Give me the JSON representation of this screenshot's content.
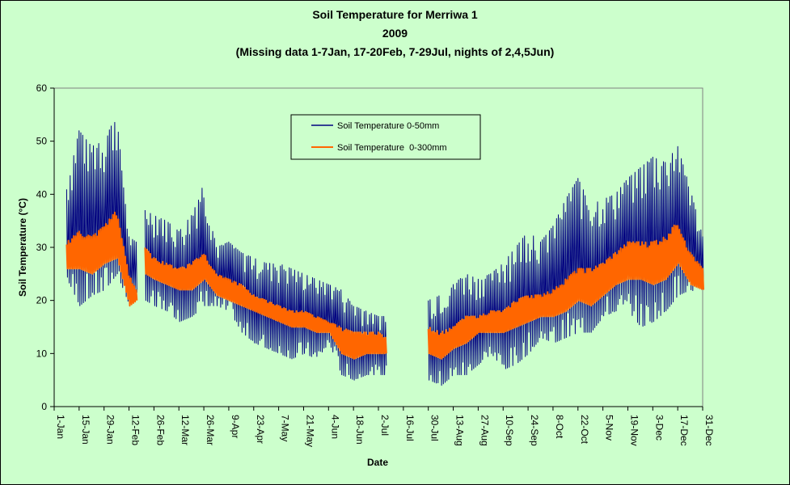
{
  "chart_data": {
    "type": "line",
    "title": "Soil Temperature for Merriwa 1",
    "subtitle": "2009",
    "subtitle2": "(Missing data 1-7Jan, 17-20Feb, 7-29Jul, nights of 2,4,5Jun)",
    "xlabel": "Date",
    "ylabel": "Soil Temperature (°C)",
    "ylim": [
      0,
      60
    ],
    "yticks": [
      0,
      10,
      20,
      30,
      40,
      50,
      60
    ],
    "xlim_day_of_year": [
      1,
      365
    ],
    "x_tick_labels": [
      "1-Jan",
      "15-Jan",
      "29-Jan",
      "12-Feb",
      "26-Feb",
      "12-Mar",
      "26-Mar",
      "9-Apr",
      "23-Apr",
      "7-May",
      "21-May",
      "4-Jun",
      "18-Jun",
      "2-Jul",
      "16-Jul",
      "30-Jul",
      "13-Aug",
      "27-Aug",
      "10-Sep",
      "24-Sep",
      "8-Oct",
      "22-Oct",
      "5-Nov",
      "19-Nov",
      "3-Dec",
      "17-Dec",
      "31-Dec"
    ],
    "grid": false,
    "legend_position": "top-center",
    "missing_periods": [
      "1-7Jan",
      "17-20Feb",
      "7-29Jul",
      "nights of 2,4,5Jun"
    ],
    "series": [
      {
        "name": "Soil Temperature 0-50mm",
        "color": "#000080",
        "daily": {
          "dates": [
            "8-Jan",
            "15-Jan",
            "22-Jan",
            "29-Jan",
            "5-Feb",
            "12-Feb",
            "16-Feb",
            "21-Feb",
            "26-Feb",
            "5-Mar",
            "12-Mar",
            "19-Mar",
            "26-Mar",
            "2-Apr",
            "9-Apr",
            "16-Apr",
            "23-Apr",
            "30-Apr",
            "7-May",
            "14-May",
            "21-May",
            "28-May",
            "4-Jun",
            "11-Jun",
            "18-Jun",
            "25-Jun",
            "2-Jul",
            "6-Jul",
            "30-Jul",
            "6-Aug",
            "13-Aug",
            "20-Aug",
            "27-Aug",
            "3-Sep",
            "10-Sep",
            "17-Sep",
            "24-Sep",
            "1-Oct",
            "8-Oct",
            "15-Oct",
            "22-Oct",
            "29-Oct",
            "5-Nov",
            "12-Nov",
            "19-Nov",
            "26-Nov",
            "3-Dec",
            "10-Dec",
            "17-Dec",
            "24-Dec",
            "31-Dec"
          ],
          "max": [
            41,
            52,
            49,
            50,
            55,
            32,
            31,
            37,
            36,
            35,
            33,
            36,
            42,
            30,
            31,
            29,
            28,
            27,
            27,
            26,
            25,
            24,
            23,
            22,
            19,
            18,
            17,
            17,
            20,
            21,
            23,
            25,
            24,
            25,
            27,
            30,
            33,
            31,
            34,
            39,
            43,
            38,
            39,
            40,
            43,
            45,
            47,
            46,
            49,
            41,
            32
          ],
          "min": [
            24,
            19,
            21,
            22,
            25,
            19,
            21,
            20,
            19,
            18,
            16,
            17,
            19,
            19,
            18,
            14,
            12,
            11,
            10,
            9,
            10,
            9,
            12,
            6,
            5,
            6,
            6,
            6,
            5,
            4,
            6,
            6,
            8,
            10,
            7,
            8,
            10,
            13,
            12,
            13,
            14,
            14,
            17,
            18,
            18,
            15,
            16,
            18,
            21,
            22,
            21
          ]
        }
      },
      {
        "name": "Soil Temperature  0-300mm",
        "color": "#ff6600",
        "daily": {
          "dates": [
            "8-Jan",
            "15-Jan",
            "22-Jan",
            "29-Jan",
            "5-Feb",
            "12-Feb",
            "16-Feb",
            "21-Feb",
            "26-Feb",
            "5-Mar",
            "12-Mar",
            "19-Mar",
            "26-Mar",
            "2-Apr",
            "9-Apr",
            "16-Apr",
            "23-Apr",
            "30-Apr",
            "7-May",
            "14-May",
            "21-May",
            "28-May",
            "4-Jun",
            "11-Jun",
            "18-Jun",
            "25-Jun",
            "2-Jul",
            "6-Jul",
            "30-Jul",
            "6-Aug",
            "13-Aug",
            "20-Aug",
            "27-Aug",
            "3-Sep",
            "10-Sep",
            "17-Sep",
            "24-Sep",
            "1-Oct",
            "8-Oct",
            "15-Oct",
            "22-Oct",
            "29-Oct",
            "5-Nov",
            "12-Nov",
            "19-Nov",
            "26-Nov",
            "3-Dec",
            "10-Dec",
            "17-Dec",
            "24-Dec",
            "31-Dec"
          ],
          "max": [
            31,
            33,
            32,
            34,
            37,
            25,
            22,
            30,
            28,
            27,
            26,
            27,
            29,
            25,
            24,
            23,
            21,
            20,
            19,
            18,
            18,
            17,
            16,
            15,
            14,
            14,
            14,
            13,
            15,
            14,
            15,
            17,
            17,
            18,
            18,
            20,
            21,
            21,
            22,
            24,
            26,
            26,
            27,
            29,
            31,
            31,
            31,
            32,
            35,
            29,
            26
          ],
          "min": [
            26,
            26,
            25,
            27,
            28,
            19,
            20,
            25,
            24,
            23,
            22,
            22,
            24,
            21,
            20,
            19,
            18,
            17,
            16,
            15,
            15,
            14,
            14,
            10,
            9,
            10,
            10,
            10,
            10,
            9,
            11,
            12,
            14,
            14,
            14,
            15,
            16,
            17,
            17,
            18,
            20,
            19,
            21,
            23,
            24,
            24,
            23,
            24,
            27,
            23,
            22
          ]
        }
      }
    ]
  }
}
